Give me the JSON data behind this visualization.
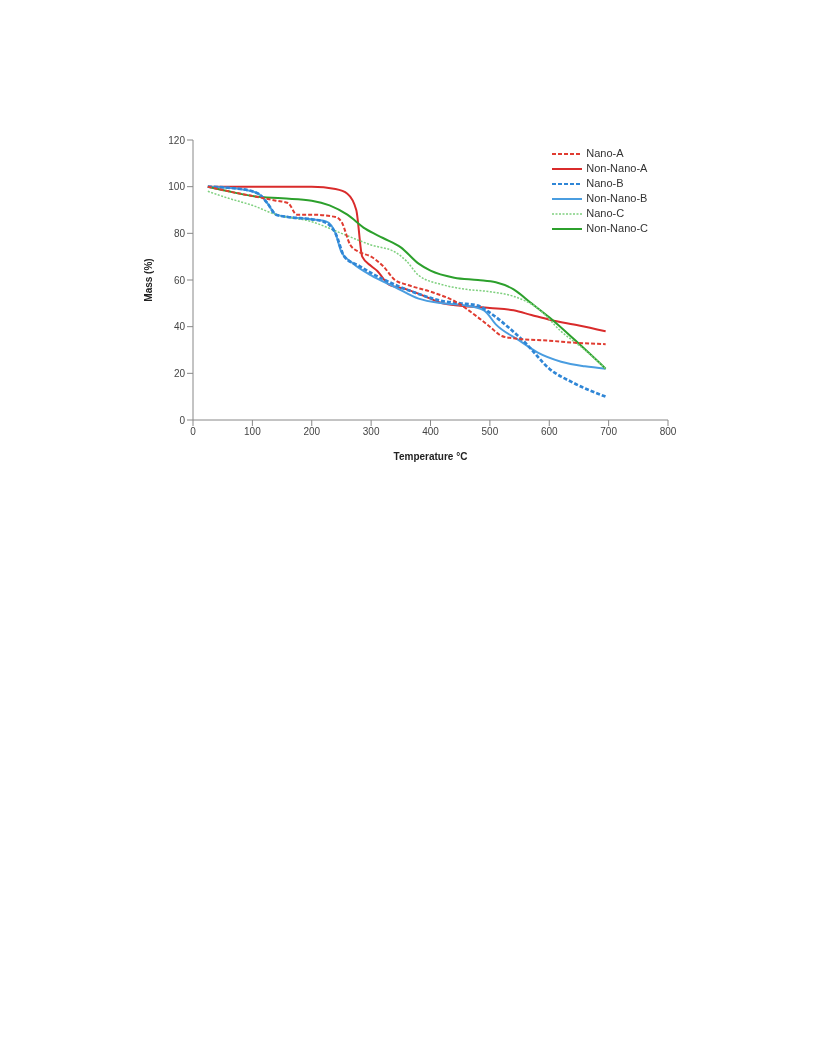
{
  "chart_data": {
    "type": "line",
    "xlabel": "Temperature °C",
    "ylabel": "Mass (%)",
    "xlim": [
      0,
      800
    ],
    "xticks": [
      0,
      100,
      200,
      300,
      400,
      500,
      600,
      700,
      800
    ],
    "ylim": [
      0,
      120
    ],
    "yticks": [
      0,
      20,
      40,
      60,
      80,
      100,
      120
    ],
    "grid": false,
    "legend": "top right",
    "marker": "none",
    "series": [
      {
        "name": "Nano-A",
        "color": "#e03c31",
        "line_style": "dashed",
        "x": [
          25,
          60,
          100,
          140,
          160,
          175,
          200,
          240,
          250,
          265,
          280,
          300,
          320,
          340,
          360,
          400,
          440,
          480,
          500,
          520,
          540,
          600,
          650,
          695
        ],
        "values": [
          100,
          98,
          96,
          94,
          93,
          88,
          88,
          87,
          85,
          75,
          72,
          70,
          66,
          60,
          58,
          55,
          51,
          44,
          40,
          36,
          35,
          34,
          33,
          32.5
        ]
      },
      {
        "name": "Non-Nano-A",
        "color": "#d92b2b",
        "line_style": "solid",
        "x": [
          25,
          100,
          200,
          240,
          260,
          275,
          285,
          300,
          310,
          330,
          360,
          400,
          420,
          450,
          500,
          540,
          570,
          600,
          650,
          695
        ],
        "values": [
          100,
          100,
          100,
          99,
          97,
          90,
          70,
          66,
          64,
          58,
          56,
          52,
          50,
          49,
          48,
          47,
          45,
          43,
          40.5,
          38
        ]
      },
      {
        "name": "Nano-B",
        "color": "#2f86d6",
        "line_style": "dashed",
        "x": [
          25,
          80,
          110,
          125,
          140,
          160,
          200,
          220,
          240,
          255,
          280,
          300,
          340,
          380,
          420,
          450,
          480,
          500,
          530,
          560,
          600,
          640,
          695
        ],
        "values": [
          100,
          99,
          97,
          93,
          88,
          87,
          86,
          85,
          80,
          70,
          66,
          63,
          58,
          54,
          51,
          50,
          49,
          46,
          40,
          33,
          22,
          16,
          10
        ]
      },
      {
        "name": "Non-Nano-B",
        "color": "#4a9de0",
        "line_style": "solid",
        "x": [
          25,
          80,
          110,
          125,
          140,
          160,
          200,
          225,
          240,
          250,
          270,
          300,
          340,
          380,
          420,
          460,
          490,
          510,
          550,
          580,
          620,
          660,
          695
        ],
        "values": [
          100,
          99,
          97,
          93,
          88,
          87,
          86,
          85,
          80,
          72,
          67,
          62,
          57,
          52,
          50,
          49,
          47,
          41,
          34,
          29,
          25,
          23,
          22
        ]
      },
      {
        "name": "Nano-C",
        "color": "#7fd07f",
        "line_style": "dotted",
        "x": [
          25,
          60,
          100,
          140,
          200,
          250,
          300,
          340,
          360,
          380,
          420,
          460,
          500,
          540,
          580,
          620,
          660,
          695
        ],
        "values": [
          98,
          95,
          92,
          88,
          85,
          80,
          75,
          72,
          68,
          62,
          58,
          56,
          55,
          53,
          48,
          38,
          30,
          22
        ]
      },
      {
        "name": "Non-Nano-C",
        "color": "#2ca02c",
        "line_style": "solid",
        "x": [
          25,
          60,
          100,
          150,
          200,
          230,
          260,
          290,
          320,
          350,
          380,
          400,
          440,
          480,
          510,
          540,
          570,
          600,
          640,
          695
        ],
        "values": [
          100,
          98,
          96,
          95,
          94,
          92,
          88,
          82,
          78,
          74,
          67,
          64,
          61,
          60,
          59,
          56,
          50,
          44,
          35,
          22
        ]
      }
    ]
  }
}
